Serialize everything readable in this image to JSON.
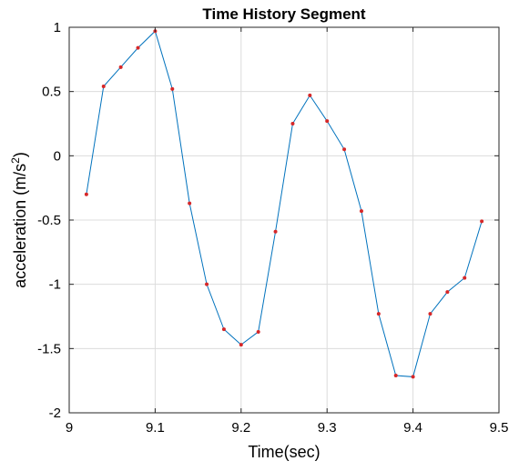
{
  "chart_data": {
    "type": "line",
    "title": "Time History Segment",
    "xlabel": "Time(sec)",
    "ylabel": "acceleration (m/s",
    "ylabel_superscript": "2",
    "ylabel_close": ")",
    "xlim": [
      9,
      9.5
    ],
    "ylim": [
      -2,
      1
    ],
    "xticks": [
      9,
      9.1,
      9.2,
      9.3,
      9.4,
      9.5
    ],
    "xtick_labels": [
      "9",
      "9.1",
      "9.2",
      "9.3",
      "9.4",
      "9.5"
    ],
    "yticks": [
      1,
      0.5,
      0,
      -0.5,
      -1,
      -1.5,
      -2
    ],
    "ytick_labels": [
      "1",
      "0.5",
      "0",
      "-0.5",
      "-1",
      "-1.5",
      "-2"
    ],
    "grid": true,
    "line_color": "#0072bd",
    "marker_color": "#d62728",
    "series": [
      {
        "x": [
          9.02,
          9.04,
          9.06,
          9.08,
          9.1,
          9.12,
          9.14,
          9.16,
          9.18,
          9.2,
          9.22,
          9.24,
          9.26,
          9.28,
          9.3,
          9.32,
          9.34,
          9.36,
          9.38,
          9.4,
          9.42,
          9.44,
          9.46,
          9.48
        ],
        "y": [
          -0.3,
          0.54,
          0.69,
          0.84,
          0.97,
          0.52,
          -0.37,
          -1.0,
          -1.35,
          -1.47,
          -1.37,
          -0.59,
          0.25,
          0.47,
          0.27,
          0.05,
          -0.43,
          -1.23,
          -1.71,
          -1.72,
          -1.23,
          -1.06,
          -0.95,
          -0.51
        ]
      }
    ]
  }
}
